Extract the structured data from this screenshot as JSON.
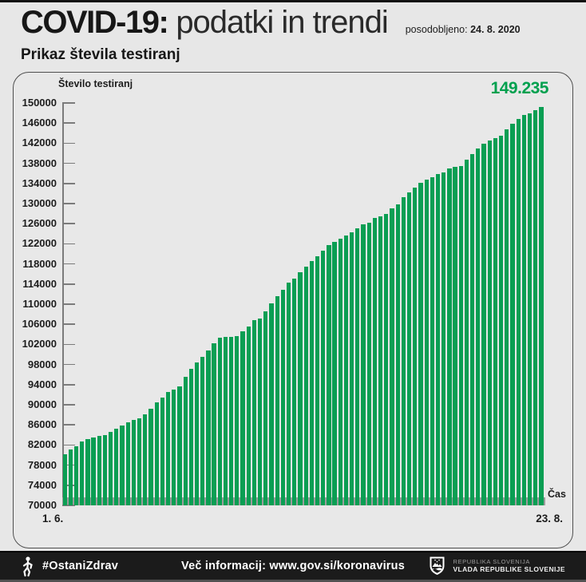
{
  "header": {
    "title_bold": "COVID-19:",
    "title_light": "podatki in trendi",
    "updated_label": "posodobljeno:",
    "updated_date": "24. 8. 2020",
    "subtitle": "Prikaz števila testiranj"
  },
  "chart_data": {
    "type": "bar",
    "title": "Prikaz števila testiranj",
    "ylabel": "Število testiranj",
    "xlabel": "Čas",
    "x_start_label": "1. 6.",
    "x_end_label": "23. 8.",
    "max_value_label": "149.235",
    "ylim": [
      70000,
      150000
    ],
    "ytick_step": 4000,
    "yticks": [
      150000,
      146000,
      142000,
      138000,
      134000,
      130000,
      126000,
      122000,
      118000,
      114000,
      110000,
      106000,
      102000,
      98000,
      94000,
      90000,
      86000,
      82000,
      78000,
      74000,
      70000
    ],
    "grid": false,
    "legend": "none",
    "bar_color": "#0a9e53",
    "accent_color": "#00a04e",
    "values": [
      80100,
      81050,
      81800,
      82750,
      83130,
      83450,
      83810,
      84000,
      84600,
      85290,
      85830,
      86460,
      86980,
      87350,
      88100,
      89250,
      90430,
      91380,
      92540,
      93060,
      93600,
      95600,
      97190,
      98460,
      99520,
      100750,
      102180,
      103380,
      103450,
      103550,
      103650,
      104600,
      105560,
      106830,
      107100,
      108520,
      110110,
      111590,
      112910,
      114240,
      115030,
      116350,
      117410,
      118500,
      119600,
      120700,
      121700,
      122400,
      123000,
      123600,
      124300,
      125100,
      125800,
      126240,
      127100,
      127460,
      127980,
      129050,
      129840,
      131270,
      132220,
      133180,
      134100,
      134800,
      135300,
      135800,
      136190,
      136990,
      137250,
      137500,
      138800,
      139800,
      140900,
      141900,
      142600,
      143060,
      143500,
      144700,
      145800,
      146900,
      147600,
      147900,
      148600,
      149235
    ]
  },
  "footer": {
    "hashtag": "#OstaniZdrav",
    "center_text": "Več informacij: www.gov.si/koronavirus",
    "gov_line1": "REPUBLIKA SLOVENIJA",
    "gov_line2": "VLADA REPUBLIKE SLOVENIJE",
    "person_icon": "ostani-zdrav-figure",
    "shield_icon": "slovenia-coat-of-arms"
  }
}
